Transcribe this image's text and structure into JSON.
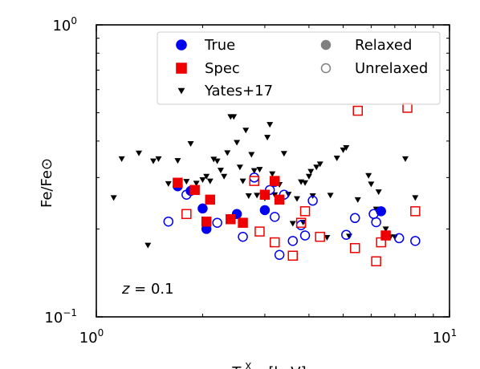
{
  "chart_data": {
    "type": "scatter",
    "xscale": "log",
    "yscale": "log",
    "xlim": [
      1,
      10
    ],
    "ylim": [
      0.1,
      1
    ],
    "xlabel": "T^X_sl [keV]",
    "ylabel": "Fe/Fe⊙",
    "x_tick_labels": [
      {
        "value": 1,
        "base": "10",
        "exp": "0"
      },
      {
        "value": 10,
        "base": "10",
        "exp": "1"
      }
    ],
    "y_tick_labels": [
      {
        "value": 0.1,
        "base": "10",
        "exp": "−1"
      },
      {
        "value": 1,
        "base": "10",
        "exp": "0"
      }
    ],
    "annotation": {
      "text": "z = 0.1",
      "var": "z",
      "rest": " = 0.1"
    },
    "legend": {
      "placement": "upper-right",
      "col1": [
        {
          "label": "True",
          "marker": "circle",
          "color": "#0000ee"
        },
        {
          "label": "Spec",
          "marker": "square",
          "color": "#ee0000"
        },
        {
          "label": "Yates+17",
          "marker": "triangle-down",
          "color": "#000000"
        }
      ],
      "col2": [
        {
          "label": "Relaxed",
          "marker": "circle",
          "color": "#808080",
          "filled": true
        },
        {
          "label": "Unrelaxed",
          "marker": "circle",
          "color": "#808080",
          "filled": false
        }
      ]
    },
    "colors": {
      "true": "#0000ee",
      "spec": "#ee0000",
      "yates": "#000000"
    },
    "series": [
      {
        "name": "Yates+17",
        "marker": "triangle-down",
        "filled": true,
        "points": [
          [
            1.12,
            0.256
          ],
          [
            1.18,
            0.348
          ],
          [
            1.32,
            0.364
          ],
          [
            1.4,
            0.176
          ],
          [
            1.45,
            0.342
          ],
          [
            1.5,
            0.348
          ],
          [
            1.6,
            0.286
          ],
          [
            1.7,
            0.343
          ],
          [
            1.8,
            0.291
          ],
          [
            1.85,
            0.392
          ],
          [
            1.92,
            0.287
          ],
          [
            2.0,
            0.295
          ],
          [
            2.05,
            0.303
          ],
          [
            2.1,
            0.292
          ],
          [
            2.15,
            0.347
          ],
          [
            2.2,
            0.342
          ],
          [
            2.25,
            0.318
          ],
          [
            2.3,
            0.303
          ],
          [
            2.35,
            0.365
          ],
          [
            2.4,
            0.485
          ],
          [
            2.45,
            0.485
          ],
          [
            2.5,
            0.396
          ],
          [
            2.55,
            0.326
          ],
          [
            2.6,
            0.292
          ],
          [
            2.65,
            0.436
          ],
          [
            2.7,
            0.26
          ],
          [
            2.75,
            0.36
          ],
          [
            2.8,
            0.317
          ],
          [
            2.85,
            0.261
          ],
          [
            2.9,
            0.32
          ],
          [
            3.0,
            0.255
          ],
          [
            3.05,
            0.412
          ],
          [
            3.1,
            0.456
          ],
          [
            3.15,
            0.309
          ],
          [
            3.2,
            0.262
          ],
          [
            3.3,
            0.284
          ],
          [
            3.4,
            0.363
          ],
          [
            3.5,
            0.263
          ],
          [
            3.6,
            0.209
          ],
          [
            3.7,
            0.254
          ],
          [
            3.8,
            0.29
          ],
          [
            3.85,
            0.211
          ],
          [
            3.9,
            0.288
          ],
          [
            4.0,
            0.303
          ],
          [
            4.05,
            0.315
          ],
          [
            4.1,
            0.26
          ],
          [
            4.2,
            0.326
          ],
          [
            4.3,
            0.334
          ],
          [
            4.5,
            0.187
          ],
          [
            4.6,
            0.261
          ],
          [
            4.8,
            0.35
          ],
          [
            5.0,
            0.373
          ],
          [
            5.1,
            0.38
          ],
          [
            5.2,
            0.189
          ],
          [
            5.5,
            0.252
          ],
          [
            5.9,
            0.305
          ],
          [
            6.0,
            0.285
          ],
          [
            6.2,
            0.234
          ],
          [
            6.3,
            0.268
          ],
          [
            6.6,
            0.2
          ],
          [
            6.8,
            0.188
          ],
          [
            7.0,
            0.188
          ],
          [
            7.5,
            0.348
          ],
          [
            8.0,
            0.256
          ]
        ]
      },
      {
        "name": "True",
        "marker": "circle",
        "filled": true,
        "points": [
          [
            1.7,
            0.28
          ],
          [
            1.85,
            0.27
          ],
          [
            2.0,
            0.235
          ],
          [
            2.05,
            0.2
          ],
          [
            2.5,
            0.225
          ],
          [
            3.0,
            0.232
          ],
          [
            3.2,
            0.29
          ],
          [
            6.4,
            0.23
          ]
        ]
      },
      {
        "name": "True",
        "marker": "circle",
        "filled": false,
        "points": [
          [
            1.6,
            0.212
          ],
          [
            1.8,
            0.262
          ],
          [
            2.2,
            0.21
          ],
          [
            2.6,
            0.188
          ],
          [
            2.8,
            0.3
          ],
          [
            3.1,
            0.272
          ],
          [
            3.2,
            0.22
          ],
          [
            3.3,
            0.163
          ],
          [
            3.4,
            0.262
          ],
          [
            3.6,
            0.182
          ],
          [
            3.8,
            0.206
          ],
          [
            3.9,
            0.19
          ],
          [
            4.1,
            0.25
          ],
          [
            5.1,
            0.191
          ],
          [
            5.4,
            0.218
          ],
          [
            6.1,
            0.225
          ],
          [
            6.2,
            0.211
          ],
          [
            7.2,
            0.186
          ],
          [
            8.0,
            0.182
          ]
        ]
      },
      {
        "name": "Spec",
        "marker": "square",
        "filled": true,
        "points": [
          [
            1.7,
            0.288
          ],
          [
            1.9,
            0.272
          ],
          [
            2.05,
            0.212
          ],
          [
            2.1,
            0.252
          ],
          [
            2.4,
            0.216
          ],
          [
            2.6,
            0.21
          ],
          [
            3.0,
            0.262
          ],
          [
            3.2,
            0.292
          ],
          [
            3.3,
            0.252
          ],
          [
            6.6,
            0.19
          ]
        ]
      },
      {
        "name": "Spec",
        "marker": "square",
        "filled": false,
        "points": [
          [
            1.8,
            0.225
          ],
          [
            2.8,
            0.292
          ],
          [
            2.9,
            0.196
          ],
          [
            3.2,
            0.18
          ],
          [
            3.6,
            0.162
          ],
          [
            3.8,
            0.21
          ],
          [
            3.9,
            0.23
          ],
          [
            4.3,
            0.188
          ],
          [
            5.4,
            0.172
          ],
          [
            5.5,
            0.508
          ],
          [
            6.2,
            0.155
          ],
          [
            6.4,
            0.18
          ],
          [
            7.6,
            0.52
          ],
          [
            8.0,
            0.23
          ]
        ]
      }
    ]
  }
}
